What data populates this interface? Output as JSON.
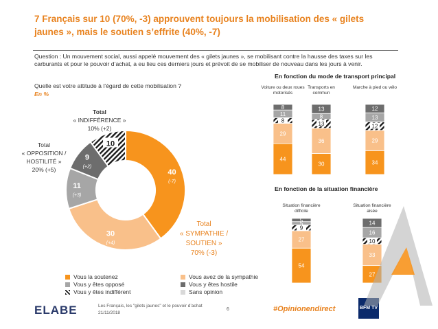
{
  "title": "7 Français sur 10 (70%, -3) approuvent toujours la mobilisation des « gilets jaunes », mais le soutien s’effrite (40%, -7)",
  "question": "Question : Un mouvement social, aussi appelé mouvement des « gilets jaunes », se mobilisant contre la hausse des taxes sur les carburants et pour le pouvoir d’achat, a eu lieu ces derniers jours et prévoit de se mobiliser de nouveau dans les jours à venir.",
  "prompt": "Quelle est votre attitude à l’égard de cette mobilisation ?",
  "unit": "En %",
  "groups": {
    "indifference": {
      "line1": "Total",
      "line2": "« INDIFFÉRENCE »",
      "line3": "10% (+2)"
    },
    "opposition": {
      "line1": "Total",
      "line2": "« OPPOSITION /",
      "line3": "HOSTILITÉ »",
      "line4": "20% (+5)"
    },
    "sympathie": {
      "line1": "Total",
      "line2": "« SYMPATHIE /",
      "line3": "SOUTIEN »",
      "line4": "70% (-3)"
    }
  },
  "chart_data": [
    {
      "type": "pie",
      "variant": "donut",
      "categories": [
        "Vous la soutenez",
        "Vous avez de la sympathie",
        "Vous y êtes opposé",
        "Vous y êtes hostile",
        "Vous y êtes indifférent"
      ],
      "values": [
        40,
        30,
        11,
        9,
        10
      ],
      "changes": [
        "(-7)",
        "(+4)",
        "(+3)",
        "(+2)",
        ""
      ],
      "colors": [
        "#f7941d",
        "#f9c08a",
        "#a6a6a6",
        "#6d6d6d",
        "hatch"
      ]
    },
    {
      "type": "bar",
      "stacked": true,
      "title": "En fonction du mode de transport principal",
      "categories": [
        "Voiture ou deux roues motorisés",
        "Transports en commun",
        "Marche à pied ou vélo"
      ],
      "series": [
        {
          "name": "Vous la soutenez",
          "values": [
            44,
            30,
            34
          ]
        },
        {
          "name": "Vous avez de la sympathie",
          "values": [
            29,
            36,
            29
          ]
        },
        {
          "name": "Vous y êtes indifférent",
          "values": [
            8,
            13,
            12
          ]
        },
        {
          "name": "Vous y êtes opposé",
          "values": [
            11,
            8,
            13
          ]
        },
        {
          "name": "Vous y êtes hostile",
          "values": [
            8,
            13,
            12
          ]
        }
      ]
    },
    {
      "type": "bar",
      "stacked": true,
      "title": "En fonction de la situation financière",
      "categories": [
        "Situation financière difficile",
        "Situation financière aisée"
      ],
      "series": [
        {
          "name": "Vous la soutenez",
          "values": [
            54,
            27
          ]
        },
        {
          "name": "Vous avez de la sympathie",
          "values": [
            27,
            33
          ]
        },
        {
          "name": "Vous y êtes indifférent",
          "values": [
            9,
            10
          ]
        },
        {
          "name": "Vous y êtes opposé",
          "values": [
            5,
            16
          ]
        },
        {
          "name": "Vous y êtes hostile",
          "values": [
            5,
            14
          ]
        }
      ]
    }
  ],
  "legend": [
    {
      "label": "Vous la soutenez",
      "color": "#f7941d"
    },
    {
      "label": "Vous avez de la sympathie",
      "color": "#f9c08a"
    },
    {
      "label": "Vous y êtes opposé",
      "color": "#a6a6a6"
    },
    {
      "label": "Vous y êtes hostile",
      "color": "#6d6d6d"
    },
    {
      "label": "Vous y êtes indifférent",
      "color": "hatch"
    },
    {
      "label": "Sans opinion",
      "color": "#d9d9d9"
    }
  ],
  "footer": {
    "line1": "Les Français, les \"gilets jaunes\" et le pouvoir d’achat",
    "line2": "21/11/2018",
    "page": "6",
    "hashtag": "#Opinionendirect",
    "brand": "ELABE",
    "partner": "BFM TV"
  }
}
